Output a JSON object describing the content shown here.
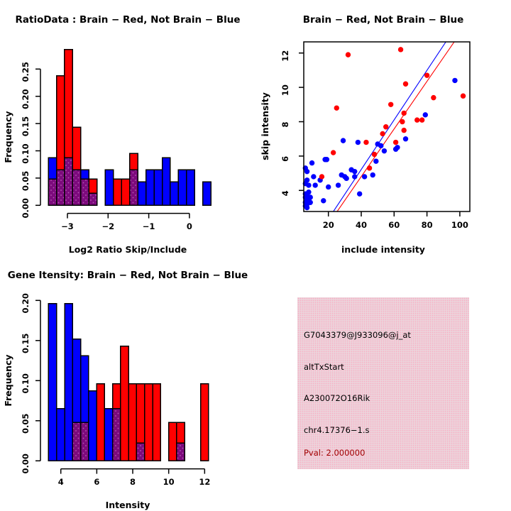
{
  "colors": {
    "red": "#ff0000",
    "blue": "#0000ff",
    "purple": "#7d0a7d",
    "purple_dot": "#b45ab4",
    "pink_bg": "#e9dfe3",
    "pink_dot": "#f7b0c4",
    "dark_red": "#a00000",
    "axis": "#000000",
    "background": "#ffffff"
  },
  "chart_data": [
    {
      "type": "histogram_overlay",
      "title": "RatioData : Brain − Red, Not Brain − Blue",
      "xlabel": "Log2 Ratio Skip/Include",
      "ylabel": "Frequency",
      "x_ticks": [
        -3,
        -2,
        -1,
        0
      ],
      "x_tick_labels": [
        "−3",
        "−2",
        "−1",
        "0"
      ],
      "y_ticks": [
        0,
        0.05,
        0.1,
        0.15,
        0.2,
        0.25
      ],
      "y_tick_labels": [
        "0.00",
        "0.05",
        "0.10",
        "0.15",
        "0.20",
        "0.25"
      ],
      "xlim": [
        -3.5,
        0.5
      ],
      "ylim": [
        0,
        0.29
      ],
      "breaks_start": -3.47,
      "bin_width": 0.2,
      "legend_note": "red = Brain, blue = Not Brain, purple = overlap",
      "series": {
        "red": [
          0.048,
          0.238,
          0.286,
          0.143,
          0.048,
          0.048,
          0,
          0,
          0.048,
          0.048,
          0.095,
          0,
          0,
          0,
          0,
          0,
          0,
          0,
          0,
          0
        ],
        "blue": [
          0.087,
          0.065,
          0.087,
          0.065,
          0.065,
          0.022,
          0,
          0.065,
          0,
          0,
          0.065,
          0.043,
          0.065,
          0.065,
          0.087,
          0.043,
          0.065,
          0.065,
          0,
          0.043
        ]
      }
    },
    {
      "type": "scatter",
      "title": "Brain − Red, Not Brain − Blue",
      "xlabel": "include intensity",
      "ylabel": "skip intensity",
      "x_ticks": [
        20,
        40,
        60,
        80,
        100
      ],
      "x_tick_labels": [
        "20",
        "40",
        "60",
        "80",
        "100"
      ],
      "y_ticks": [
        4,
        6,
        8,
        10,
        12
      ],
      "y_tick_labels": [
        "4",
        "6",
        "8",
        "10",
        "12"
      ],
      "xlim": [
        5,
        106
      ],
      "ylim": [
        2.77,
        12.65
      ],
      "red_points": [
        [
          32,
          11.9
        ],
        [
          64,
          12.2
        ],
        [
          67,
          10.2
        ],
        [
          80,
          10.7
        ],
        [
          25,
          8.8
        ],
        [
          84,
          9.4
        ],
        [
          102,
          9.5
        ],
        [
          58,
          9.0
        ],
        [
          66,
          8.5
        ],
        [
          65,
          8.0
        ],
        [
          74,
          8.1
        ],
        [
          77,
          8.1
        ],
        [
          55,
          7.7
        ],
        [
          66,
          7.5
        ],
        [
          53,
          7.3
        ],
        [
          43,
          6.8
        ],
        [
          61,
          6.8
        ],
        [
          48,
          6.1
        ],
        [
          23,
          6.2
        ],
        [
          45,
          5.3
        ],
        [
          16,
          4.8
        ]
      ],
      "blue_points": [
        [
          97,
          10.4
        ],
        [
          79,
          8.4
        ],
        [
          67,
          7.0
        ],
        [
          61,
          6.4
        ],
        [
          29,
          6.9
        ],
        [
          38,
          6.8
        ],
        [
          50,
          6.7
        ],
        [
          52,
          6.6
        ],
        [
          54,
          6.3
        ],
        [
          62,
          6.5
        ],
        [
          18,
          5.8
        ],
        [
          19,
          5.8
        ],
        [
          10,
          5.6
        ],
        [
          6,
          5.3
        ],
        [
          7,
          5.1
        ],
        [
          49,
          5.7
        ],
        [
          34,
          5.2
        ],
        [
          36,
          5.1
        ],
        [
          28,
          4.9
        ],
        [
          30,
          4.8
        ],
        [
          31,
          4.7
        ],
        [
          36,
          4.8
        ],
        [
          11,
          4.8
        ],
        [
          15,
          4.6
        ],
        [
          7,
          4.6
        ],
        [
          6,
          4.4
        ],
        [
          8,
          4.3
        ],
        [
          12,
          4.3
        ],
        [
          20,
          4.2
        ],
        [
          26,
          4.3
        ],
        [
          42,
          4.8
        ],
        [
          47,
          4.9
        ],
        [
          39,
          3.8
        ],
        [
          17,
          3.4
        ],
        [
          9,
          3.6
        ],
        [
          8,
          3.9
        ],
        [
          6,
          3.8
        ],
        [
          7,
          3.7
        ],
        [
          6,
          3.6
        ],
        [
          7,
          3.5
        ],
        [
          8,
          3.4
        ],
        [
          6,
          3.3
        ],
        [
          7,
          3.2
        ],
        [
          9,
          3.3
        ],
        [
          6,
          3.1
        ],
        [
          7,
          3.0
        ]
      ],
      "fit_lines": [
        {
          "name": "not-brain-fit",
          "color": "#0000ff",
          "x1": 23.0,
          "y1": 2.77,
          "x2": 91.5,
          "y2": 12.65
        },
        {
          "name": "brain-fit",
          "color": "#ff0000",
          "x1": 25.3,
          "y1": 2.77,
          "x2": 96.6,
          "y2": 12.65
        }
      ]
    },
    {
      "type": "histogram_overlay",
      "title": "Gene Itensity: Brain − Red, Not Brain − Blue",
      "xlabel": "Intensity",
      "ylabel": "Frequency",
      "x_ticks": [
        4,
        6,
        8,
        10,
        12
      ],
      "x_tick_labels": [
        "4",
        "6",
        "8",
        "10",
        "12"
      ],
      "y_ticks": [
        0,
        0.05,
        0.1,
        0.15,
        0.2
      ],
      "y_tick_labels": [
        "0.00",
        "0.05",
        "0.10",
        "0.15",
        "0.20"
      ],
      "xlim": [
        3.3,
        12.3
      ],
      "ylim": [
        0,
        0.2
      ],
      "breaks_start": 3.32,
      "bin_width": 0.445,
      "legend_note": "red = Brain, blue = Not Brain, purple = overlap",
      "series": {
        "red": [
          0,
          0,
          0,
          0.048,
          0.048,
          0,
          0.096,
          0,
          0.096,
          0.143,
          0.096,
          0.096,
          0.096,
          0.096,
          0,
          0.048,
          0.048,
          0,
          0,
          0.096
        ],
        "blue": [
          0.196,
          0.065,
          0.196,
          0.152,
          0.131,
          0.087,
          0,
          0.065,
          0.065,
          0,
          0,
          0.022,
          0,
          0,
          0,
          0,
          0.022,
          0,
          0,
          0
        ]
      }
    },
    {
      "type": "info_panel",
      "lines": [
        {
          "text": "G7043379@J933096@j_at",
          "color": "#000000"
        },
        {
          "text": "altTxStart",
          "color": "#000000"
        },
        {
          "text": "A230072O16Rik",
          "color": "#000000"
        },
        {
          "text": "chr4.17376−1.s",
          "color": "#000000"
        },
        {
          "text": "Pval: 2.000000",
          "color": "#a00000"
        }
      ]
    }
  ]
}
